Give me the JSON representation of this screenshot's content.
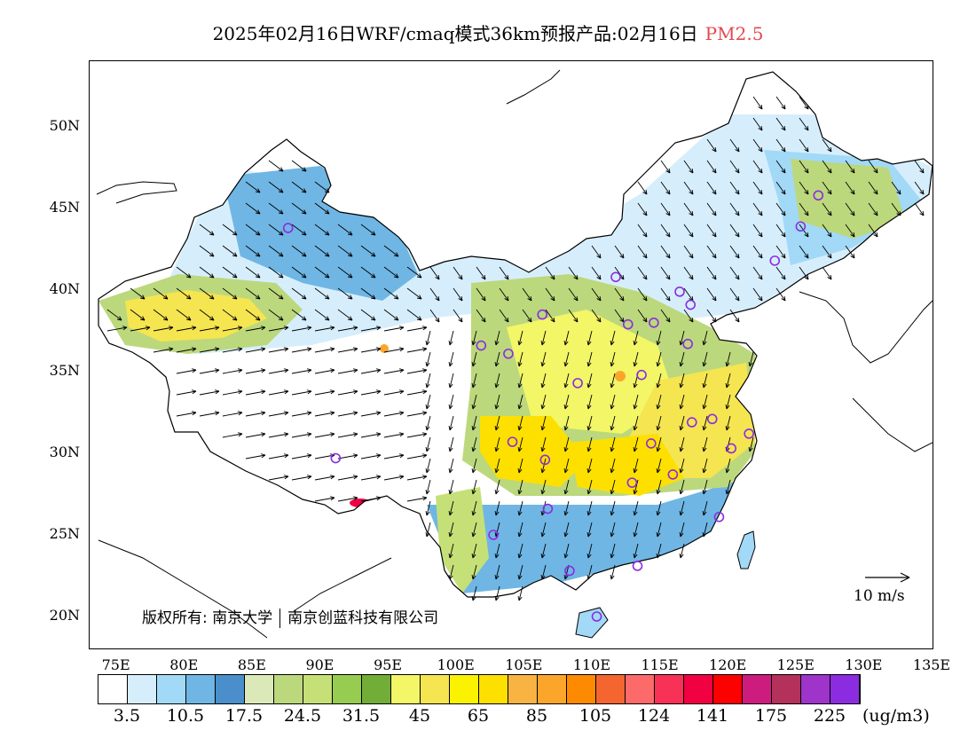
{
  "title": {
    "main": "2025年02月16日WRF/cmaq模式36km预报产品:02月16日",
    "pollutant": "PM2.5"
  },
  "copyright": {
    "prefix": "版权所有:",
    "org1": "南京大学",
    "org2": "南京创蓝科技有限公司"
  },
  "wind_reference": {
    "label": "10 m/s"
  },
  "axes": {
    "lat_labels": [
      "50N",
      "45N",
      "40N",
      "35N",
      "30N",
      "25N",
      "20N"
    ],
    "lon_labels": [
      "75E",
      "80E",
      "85E",
      "90E",
      "95E",
      "100E",
      "105E",
      "110E",
      "115E",
      "120E",
      "125E",
      "130E",
      "135E"
    ]
  },
  "colorbar": {
    "colors": [
      "#ffffff",
      "#d6eefc",
      "#a2d9f6",
      "#6fb6e4",
      "#4a8fcb",
      "#dbe9b8",
      "#bcd87c",
      "#c6e078",
      "#96cc50",
      "#72ad38",
      "#f2f667",
      "#f5e550",
      "#fbf200",
      "#fde000",
      "#f8b342",
      "#fca52b",
      "#fd8a00",
      "#f46530",
      "#fd6a6a",
      "#f73256",
      "#f10042",
      "#fd0000",
      "#cd1b7e",
      "#b3315b",
      "#9e34c9",
      "#8b2ce1"
    ],
    "labels": [
      "3.5",
      "10.5",
      "17.5",
      "24.5",
      "31.5",
      "45",
      "65",
      "85",
      "105",
      "124",
      "141",
      "175",
      "225"
    ],
    "unit": "(ug/m3)"
  },
  "legend_colors": {
    "clean": "#d6eefc",
    "low": "#6fb6e4",
    "moderate": "#bcd87c",
    "elevated": "#f5e550",
    "high": "#fca52b",
    "hotspot": "#f10042",
    "station_marker": "#8b2ce1"
  },
  "stations": [
    {
      "lon": 87.6,
      "lat": 43.8
    },
    {
      "lon": 91.1,
      "lat": 29.7
    },
    {
      "lon": 101.8,
      "lat": 36.6
    },
    {
      "lon": 103.8,
      "lat": 36.1
    },
    {
      "lon": 106.3,
      "lat": 38.5
    },
    {
      "lon": 111.7,
      "lat": 40.8
    },
    {
      "lon": 112.6,
      "lat": 37.9
    },
    {
      "lon": 114.5,
      "lat": 38.0
    },
    {
      "lon": 116.4,
      "lat": 39.9
    },
    {
      "lon": 117.2,
      "lat": 39.1
    },
    {
      "lon": 117.0,
      "lat": 36.7
    },
    {
      "lon": 113.6,
      "lat": 34.8
    },
    {
      "lon": 108.9,
      "lat": 34.3
    },
    {
      "lon": 104.1,
      "lat": 30.7
    },
    {
      "lon": 106.5,
      "lat": 29.6
    },
    {
      "lon": 114.3,
      "lat": 30.6
    },
    {
      "lon": 117.3,
      "lat": 31.9
    },
    {
      "lon": 118.8,
      "lat": 32.1
    },
    {
      "lon": 121.5,
      "lat": 31.2
    },
    {
      "lon": 120.2,
      "lat": 30.3
    },
    {
      "lon": 112.9,
      "lat": 28.2
    },
    {
      "lon": 115.9,
      "lat": 28.7
    },
    {
      "lon": 119.3,
      "lat": 26.1
    },
    {
      "lon": 113.3,
      "lat": 23.1
    },
    {
      "lon": 108.3,
      "lat": 22.8
    },
    {
      "lon": 102.7,
      "lat": 25.0
    },
    {
      "lon": 106.7,
      "lat": 26.6
    },
    {
      "lon": 110.3,
      "lat": 20.0
    },
    {
      "lon": 123.4,
      "lat": 41.8
    },
    {
      "lon": 125.3,
      "lat": 43.9
    },
    {
      "lon": 126.6,
      "lat": 45.8
    }
  ]
}
